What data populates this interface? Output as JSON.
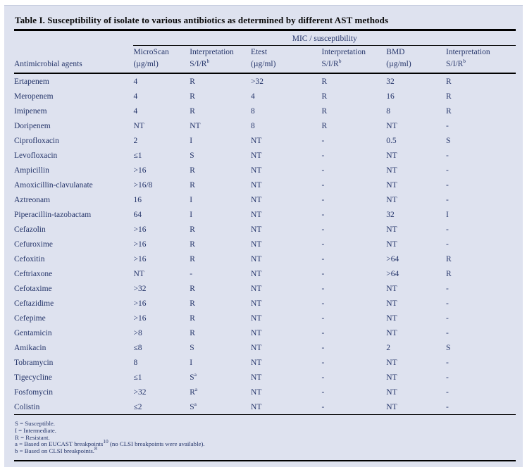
{
  "title": "Table I. Susceptibility of isolate to various antibiotics as determined by different AST methods",
  "colors": {
    "panel_bg": "#dee2ef",
    "body_text": "#25356a",
    "title_text": "#0a0a0a",
    "rules": "#000000"
  },
  "table": {
    "group_header": "MIC / susceptibility",
    "row_header": "Antimicrobial agents",
    "columns": [
      {
        "line1": "MicroScan",
        "line2": "(µg/ml)"
      },
      {
        "line1": "Interpretation",
        "line2": "S/I/R^{b}"
      },
      {
        "line1": "Etest",
        "line2": "(µg/ml)"
      },
      {
        "line1": "Interpretation",
        "line2": "S/I/R^{b}"
      },
      {
        "line1": "BMD",
        "line2": "(µg/ml)"
      },
      {
        "line1": "Interpretation",
        "line2": "S/I/R^{b}"
      }
    ],
    "rows": [
      {
        "agent": "Ertapenem",
        "values": [
          "4",
          "R",
          ">32",
          "R",
          "32",
          "R"
        ]
      },
      {
        "agent": "Meropenem",
        "values": [
          "4",
          "R",
          "4",
          "R",
          "16",
          "R"
        ]
      },
      {
        "agent": "Imipenem",
        "values": [
          "4",
          "R",
          "8",
          "R",
          "8",
          "R"
        ]
      },
      {
        "agent": "Doripenem",
        "values": [
          "NT",
          "NT",
          "8",
          "R",
          "NT",
          "-"
        ]
      },
      {
        "agent": "Ciprofloxacin",
        "values": [
          "2",
          "I",
          "NT",
          "-",
          "0.5",
          "S"
        ]
      },
      {
        "agent": "Levofloxacin",
        "values": [
          "≤1",
          "S",
          "NT",
          "-",
          "NT",
          "-"
        ]
      },
      {
        "agent": "Ampicillin",
        "values": [
          ">16",
          "R",
          "NT",
          "-",
          "NT",
          "-"
        ]
      },
      {
        "agent": "Amoxicillin-clavulanate",
        "values": [
          ">16/8",
          "R",
          "NT",
          "-",
          "NT",
          "-"
        ]
      },
      {
        "agent": "Aztreonam",
        "values": [
          "16",
          "I",
          "NT",
          "-",
          "NT",
          "-"
        ]
      },
      {
        "agent": "Piperacillin-tazobactam",
        "values": [
          "64",
          "I",
          "NT",
          "-",
          "32",
          "I"
        ]
      },
      {
        "agent": "Cefazolin",
        "values": [
          ">16",
          "R",
          "NT",
          "-",
          "NT",
          "-"
        ]
      },
      {
        "agent": "Cefuroxime",
        "values": [
          ">16",
          "R",
          "NT",
          "-",
          "NT",
          "-"
        ]
      },
      {
        "agent": "Cefoxitin",
        "values": [
          ">16",
          "R",
          "NT",
          "-",
          ">64",
          "R"
        ]
      },
      {
        "agent": "Ceftriaxone",
        "values": [
          "NT",
          "-",
          "NT",
          "-",
          ">64",
          "R"
        ]
      },
      {
        "agent": "Cefotaxime",
        "values": [
          ">32",
          "R",
          "NT",
          "-",
          "NT",
          "-"
        ]
      },
      {
        "agent": "Ceftazidime",
        "values": [
          ">16",
          "R",
          "NT",
          "-",
          "NT",
          "-"
        ]
      },
      {
        "agent": "Cefepime",
        "values": [
          ">16",
          "R",
          "NT",
          "-",
          "NT",
          "-"
        ]
      },
      {
        "agent": "Gentamicin",
        "values": [
          ">8",
          "R",
          "NT",
          "-",
          "NT",
          "-"
        ]
      },
      {
        "agent": "Amikacin",
        "values": [
          "≤8",
          "S",
          "NT",
          "-",
          "2",
          "S"
        ]
      },
      {
        "agent": "Tobramycin",
        "values": [
          "8",
          "I",
          "NT",
          "-",
          "NT",
          "-"
        ]
      },
      {
        "agent": "Tigecycline",
        "values": [
          "≤1",
          "S^{a}",
          "NT",
          "-",
          "NT",
          "-"
        ]
      },
      {
        "agent": "Fosfomycin",
        "values": [
          ">32",
          "R^{a}",
          "NT",
          "-",
          "NT",
          "-"
        ]
      },
      {
        "agent": "Colistin",
        "values": [
          "≤2",
          "S^{a}",
          "NT",
          "-",
          "NT",
          "-"
        ]
      }
    ]
  },
  "footnotes": [
    "S = Susceptible.",
    "I = Intermediate.",
    "R = Resistant.",
    "a = Based on EUCAST breakpoints^{10} (no CLSI breakpoints were available).",
    "b = Based on CLSI breakpoints.^{8}"
  ]
}
